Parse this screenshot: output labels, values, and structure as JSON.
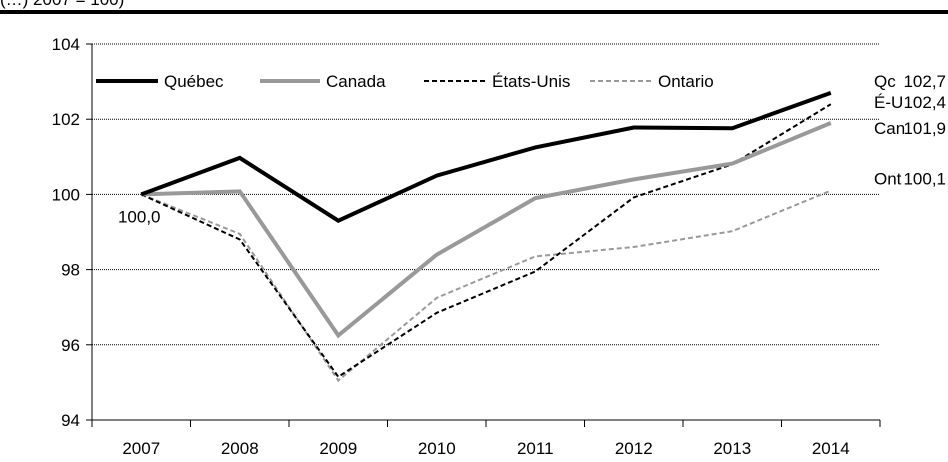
{
  "header": {
    "caption": "(…) 2007 = 100)"
  },
  "chart_data": {
    "type": "line",
    "categories": [
      "2007",
      "2008",
      "2009",
      "2010",
      "2011",
      "2012",
      "2013",
      "2014"
    ],
    "ylim": [
      94,
      104
    ],
    "yticks": [
      "94",
      "96",
      "98",
      "100",
      "102",
      "104"
    ],
    "grid": true,
    "legend_position": "top-left (inside plot)",
    "series": [
      {
        "name": "Québec",
        "values": [
          100.0,
          100.97,
          99.3,
          100.5,
          101.25,
          101.78,
          101.76,
          102.7
        ],
        "color": "#000000",
        "dash": "solid",
        "weight": "thick"
      },
      {
        "name": "Canada",
        "values": [
          100.0,
          100.08,
          96.25,
          98.4,
          99.9,
          100.4,
          100.82,
          101.9
        ],
        "color": "#999999",
        "dash": "solid",
        "weight": "thick"
      },
      {
        "name": "États-Unis",
        "values": [
          100.0,
          98.8,
          95.15,
          96.85,
          97.95,
          99.92,
          100.8,
          102.4
        ],
        "color": "#000000",
        "dash": "dashed",
        "weight": "thin"
      },
      {
        "name": "Ontario",
        "values": [
          100.0,
          98.95,
          95.05,
          97.25,
          98.35,
          98.6,
          99.02,
          100.1
        ],
        "color": "#999999",
        "dash": "dashed",
        "weight": "thin"
      }
    ],
    "annotations": [
      {
        "label": "100,0",
        "year": "2007"
      },
      {
        "label": "Qc",
        "value": "102,7"
      },
      {
        "label": "É-U",
        "value": "102,4"
      },
      {
        "label": "Can",
        "value": "101,9"
      },
      {
        "label": "Ont",
        "value": "100,1"
      }
    ]
  }
}
